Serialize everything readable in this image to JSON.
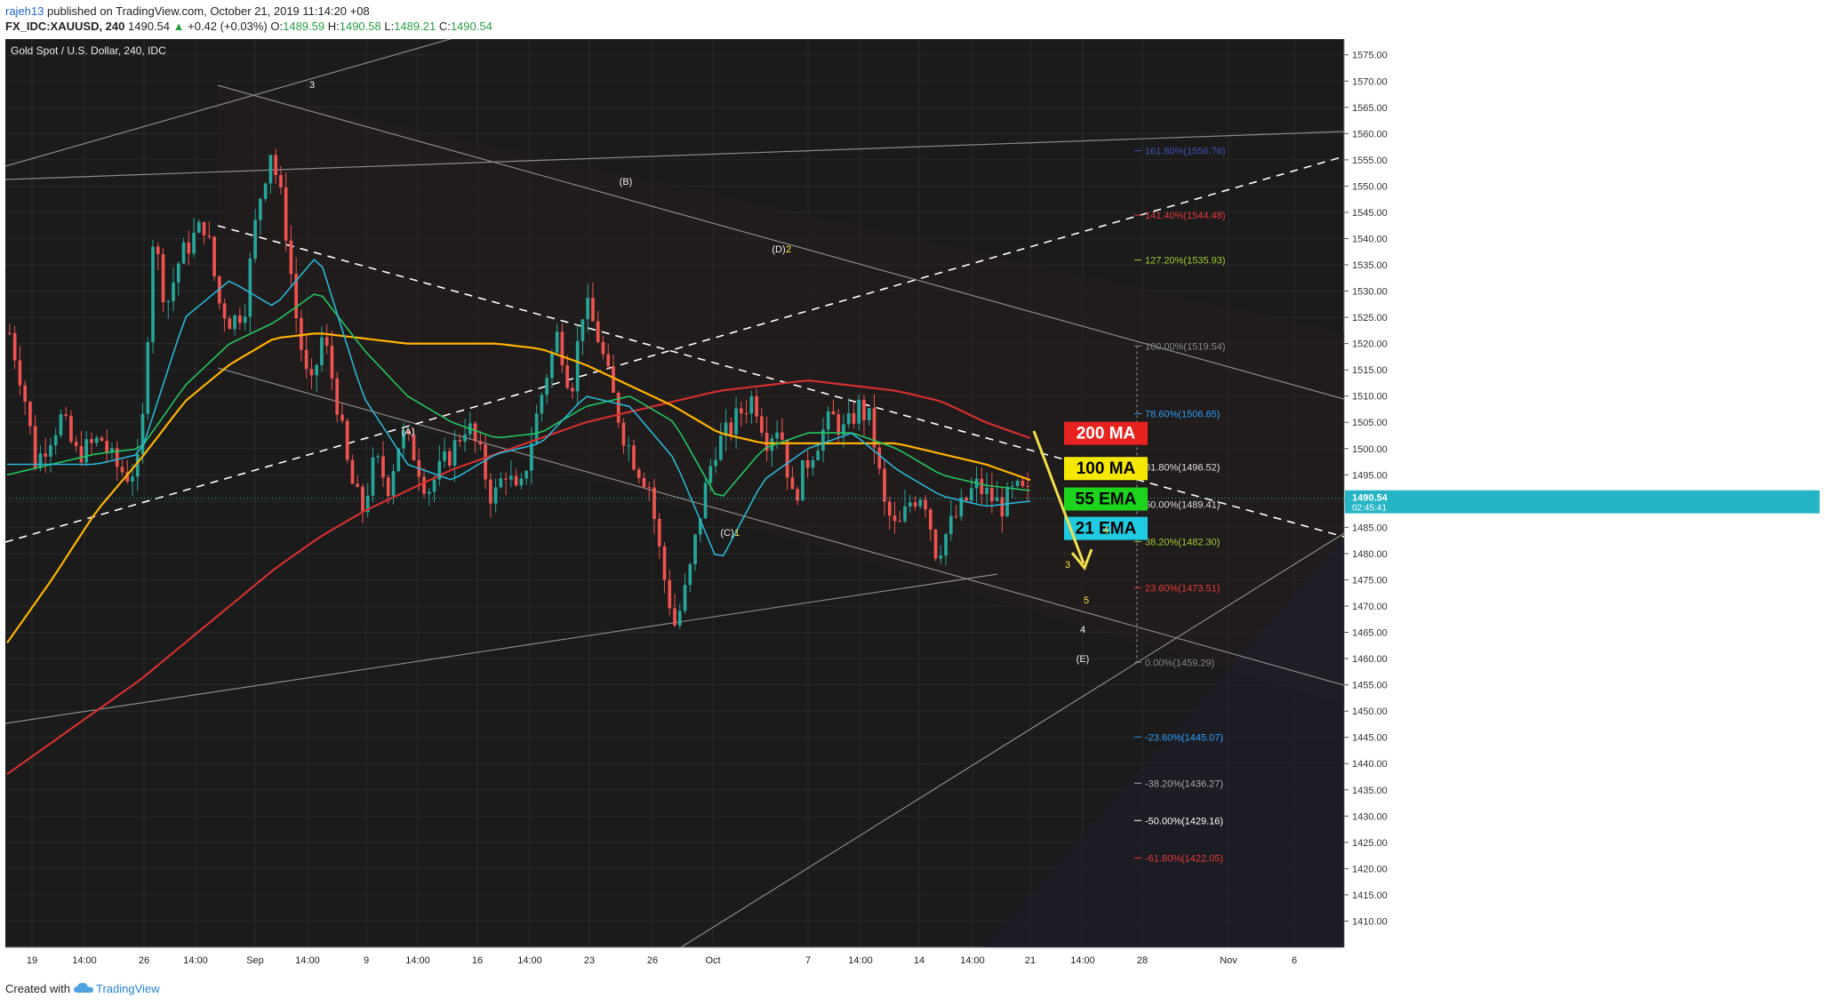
{
  "header": {
    "user": "rajeh13",
    "published_text": "published on TradingView.com, October 21, 2019 11:14:20 +08",
    "symbol": "FX_IDC:XAUUSD, 240",
    "last": "1490.54",
    "change_arrow": "▲",
    "change": "+0.42 (+0.03%)",
    "o_label": "O:",
    "o_value": "1489.59",
    "h_label": "H:",
    "h_value": "1490.58",
    "l_label": "L:",
    "l_value": "1489.21",
    "c_label": "C:",
    "c_value": "1490.54"
  },
  "footer": {
    "created_with": "Created with",
    "brand": "TradingView",
    "logo_icon": "tradingview-cloud-icon"
  },
  "colors": {
    "background": "#1b1b1b",
    "grid": "#2b2b2b",
    "candle_up": "#26a69a",
    "candle_down": "#ef5350",
    "ma200": "#d32f2f",
    "ma100": "#ffb300",
    "ema55": "#22c55e",
    "ema21": "#29b6d6",
    "wave_arrow": "#f2e04a",
    "price_tag": "#26b5c4"
  },
  "chart_data": {
    "type": "candlestick",
    "title": "Gold Spot / U.S. Dollar, 240, IDC",
    "y_range": [
      1405,
      1578
    ],
    "y_ticks": [
      "1575.00",
      "1570.00",
      "1565.00",
      "1560.00",
      "1555.00",
      "1550.00",
      "1545.00",
      "1540.00",
      "1535.00",
      "1530.00",
      "1525.00",
      "1520.00",
      "1515.00",
      "1510.00",
      "1505.00",
      "1500.00",
      "1495.00",
      "1490.00",
      "1485.00",
      "1480.00",
      "1475.00",
      "1470.00",
      "1465.00",
      "1460.00",
      "1455.00",
      "1450.00",
      "1445.00",
      "1440.00",
      "1435.00",
      "1430.00",
      "1425.00",
      "1420.00",
      "1415.00",
      "1410.00"
    ],
    "x_ticks": [
      "19",
      "14:00",
      "26",
      "14:00",
      "Sep",
      "14:00",
      "9",
      "14:00",
      "16",
      "14:00",
      "23",
      "26",
      "Oct",
      "7",
      "14:00",
      "14",
      "14:00",
      "21",
      "14:00",
      "28",
      "Nov",
      "6"
    ],
    "last_price": "1490.54",
    "countdown": "02:45:41",
    "price_path": [
      1522,
      1512,
      1497,
      1502,
      1506,
      1499,
      1500,
      1502,
      1497,
      1495,
      1497,
      1541,
      1527,
      1536,
      1540,
      1543,
      1528,
      1524,
      1527,
      1546,
      1557,
      1545,
      1524,
      1510,
      1522,
      1510,
      1495,
      1488,
      1498,
      1493,
      1503,
      1499,
      1492,
      1496,
      1500,
      1505,
      1499,
      1490,
      1496,
      1490,
      1502,
      1513,
      1522,
      1511,
      1528,
      1522,
      1512,
      1503,
      1497,
      1493,
      1477,
      1466,
      1475,
      1489,
      1500,
      1503,
      1507,
      1510,
      1502,
      1505,
      1490,
      1497,
      1502,
      1506,
      1503,
      1508,
      1505,
      1489,
      1484,
      1490,
      1492,
      1480,
      1485,
      1489,
      1493,
      1491,
      1489,
      1492,
      1491
    ],
    "price_path_x_range": [
      "19",
      "21"
    ],
    "indicators": [
      {
        "name": "200 MA",
        "values": [
          1438,
          1444,
          1450,
          1456,
          1463,
          1470,
          1477,
          1483,
          1488,
          1492,
          1496,
          1499,
          1502,
          1505,
          1507,
          1509,
          1511,
          1512,
          1513,
          1512,
          1511,
          1509,
          1505,
          1502
        ]
      },
      {
        "name": "100 MA",
        "values": [
          1463,
          1475,
          1488,
          1498,
          1509,
          1516,
          1521,
          1522,
          1521,
          1520,
          1520,
          1520,
          1519,
          1516,
          1512,
          1508,
          1503,
          1501,
          1501,
          1501,
          1501,
          1499,
          1497,
          1494
        ]
      },
      {
        "name": "55 EMA",
        "values": [
          1495,
          1497,
          1499,
          1500,
          1512,
          1520,
          1524,
          1530,
          1519,
          1510,
          1505,
          1502,
          1503,
          1508,
          1510,
          1505,
          1490,
          1500,
          1503,
          1503,
          1500,
          1495,
          1493,
          1492
        ]
      },
      {
        "name": "21 EMA",
        "values": [
          1497,
          1497,
          1497,
          1499,
          1525,
          1532,
          1527,
          1537,
          1510,
          1497,
          1494,
          1499,
          1501,
          1510,
          1508,
          1498,
          1478,
          1494,
          1500,
          1503,
          1496,
          1491,
          1489,
          1490
        ]
      }
    ],
    "fibonacci": [
      {
        "label": "161.80%(1556.76)",
        "value": 1556.76,
        "color": "#3f51b5"
      },
      {
        "label": "141.40%(1544.48)",
        "value": 1544.48,
        "color": "#e53935"
      },
      {
        "label": "127.20%(1535.93)",
        "value": 1535.93,
        "color": "#9ccc32"
      },
      {
        "label": "100.00%(1519.54)",
        "value": 1519.54,
        "color": "#888888"
      },
      {
        "label": "78.60%(1506.65)",
        "value": 1506.65,
        "color": "#2a9df4"
      },
      {
        "label": "61.80%(1496.52)",
        "value": 1496.52,
        "color": "#dddddd"
      },
      {
        "label": "50.00%(1489.41)",
        "value": 1489.41,
        "color": "#dddddd"
      },
      {
        "label": "38.20%(1482.30)",
        "value": 1482.3,
        "color": "#9ccc32"
      },
      {
        "label": "23.60%(1473.51)",
        "value": 1473.51,
        "color": "#e53935"
      },
      {
        "label": "0.00%(1459.29)",
        "value": 1459.29,
        "color": "#888888"
      },
      {
        "label": "-23.60%(1445.07)",
        "value": 1445.07,
        "color": "#2a9df4"
      },
      {
        "label": "-38.20%(1436.27)",
        "value": 1436.27,
        "color": "#aaaaaa"
      },
      {
        "label": "-50.00%(1429.16)",
        "value": 1429.16,
        "color": "#ffffff"
      },
      {
        "label": "-61.80%(1422.05)",
        "value": 1422.05,
        "color": "#e53935"
      }
    ],
    "legend": [
      {
        "label": "200 MA",
        "color": "#e8231f",
        "text_color": "#ffffff"
      },
      {
        "label": "100 MA",
        "color": "#f5e800",
        "text_color": "#000000"
      },
      {
        "label": "55 EMA",
        "color": "#1bd41b",
        "text_color": "#000000"
      },
      {
        "label": "21 EMA",
        "color": "#1ecbe1",
        "text_color": "#000000"
      }
    ],
    "legend_position": "right",
    "wave_labels": [
      "3",
      "(B)",
      "(D)",
      "2",
      "(A)",
      "(C)",
      "1",
      "4",
      "3",
      "5",
      "4",
      "(E)"
    ]
  }
}
